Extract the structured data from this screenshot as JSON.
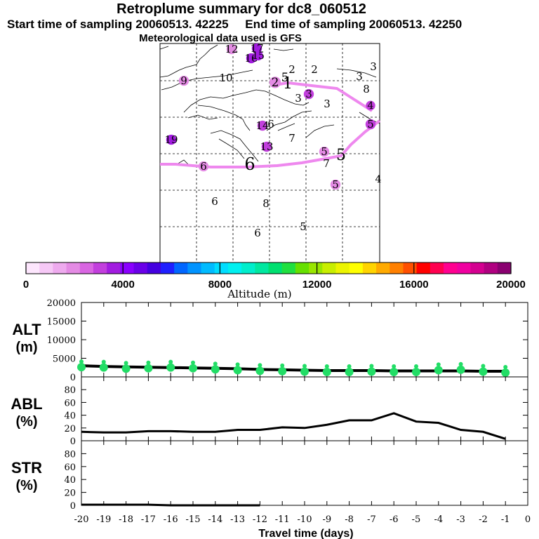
{
  "header": {
    "title": "Retroplume summary for dc8_060512",
    "start_label": "Start time of sampling 20060513. 42225",
    "end_label": "End time of sampling 20060513. 42250",
    "met_label": "Meteorological data used is GFS"
  },
  "colorbar": {
    "label": "Altitude  (m)",
    "ticks": [
      "0",
      "4000",
      "8000",
      "12000",
      "16000",
      "20000"
    ],
    "colors": [
      "#fde6fd",
      "#f6c8f6",
      "#eeaaee",
      "#e48be4",
      "#d966e2",
      "#c23fdd",
      "#a21ce0",
      "#8a00ff",
      "#6a00e8",
      "#4400e0",
      "#1f1fff",
      "#0066ff",
      "#0093ff",
      "#00bbff",
      "#00ddff",
      "#00f0f0",
      "#00eecc",
      "#00e8a0",
      "#00e070",
      "#20e040",
      "#66e000",
      "#99e600",
      "#c8ee00",
      "#ecf400",
      "#ffff00",
      "#ffd400",
      "#ffaa00",
      "#ff8000",
      "#ff5000",
      "#ff0000",
      "#ff0050",
      "#ff0090",
      "#f000a0",
      "#d40090",
      "#b00080",
      "#8a0070"
    ]
  },
  "map": {
    "labels": [
      {
        "t": "12",
        "c": "#e08be0"
      },
      {
        "t": "17",
        "c": "#a21ce0"
      },
      {
        "t": "16",
        "c": "#a21ce0"
      },
      {
        "t": "15",
        "c": "#a21ce0"
      },
      {
        "t": "9",
        "c": "#e48be4"
      },
      {
        "t": "10",
        "c": ""
      },
      {
        "t": "2",
        "c": ""
      },
      {
        "t": "2",
        "c": ""
      },
      {
        "t": "3",
        "c": ""
      },
      {
        "t": "3",
        "c": ""
      },
      {
        "t": "8",
        "c": ""
      },
      {
        "t": "5",
        "c": ""
      },
      {
        "t": "2",
        "c": "#e48be4"
      },
      {
        "t": "1",
        "c": ""
      },
      {
        "t": "3",
        "c": "#c23fdd"
      },
      {
        "t": "3",
        "c": ""
      },
      {
        "t": "4",
        "c": "#c23fdd"
      },
      {
        "t": "14",
        "c": "#c23fdd"
      },
      {
        "t": "6",
        "c": ""
      },
      {
        "t": "5",
        "c": "#c23fdd"
      },
      {
        "t": "19",
        "c": "#a21ce0"
      },
      {
        "t": "13",
        "c": "#c23fdd"
      },
      {
        "t": "7",
        "c": ""
      },
      {
        "t": "5",
        "c": "#e48be4"
      },
      {
        "t": "5",
        "c": ""
      },
      {
        "t": "7",
        "c": ""
      },
      {
        "t": "6",
        "c": "#e48be4"
      },
      {
        "t": "6",
        "c": ""
      },
      {
        "t": "5",
        "c": "#e48be4"
      },
      {
        "t": "4",
        "c": ""
      },
      {
        "t": "6",
        "c": ""
      },
      {
        "t": "8",
        "c": ""
      },
      {
        "t": "5",
        "c": ""
      },
      {
        "t": "6",
        "c": ""
      },
      {
        "t": "3",
        "c": ""
      }
    ]
  },
  "chart_data": [
    {
      "type": "scatter",
      "panel": "ALT",
      "ylabel": "ALT\n(m)",
      "ylabel_line1": "ALT",
      "ylabel_line2": "(m)",
      "ylim": [
        0,
        20000
      ],
      "yticks": [
        0,
        5000,
        10000,
        15000,
        20000
      ],
      "x": [
        -20,
        -19,
        -18,
        -17,
        -16,
        -15,
        -14,
        -13,
        -12,
        -11,
        -10,
        -9,
        -8,
        -7,
        -6,
        -5,
        -4,
        -3,
        -2,
        -1
      ],
      "mean_line": [
        3000,
        2800,
        2700,
        2600,
        2500,
        2400,
        2300,
        2200,
        2000,
        1900,
        1800,
        1700,
        1700,
        1700,
        1600,
        1600,
        1600,
        1600,
        1500,
        1500
      ],
      "points": [
        3000,
        2900,
        2600,
        2700,
        2900,
        2700,
        2400,
        2200,
        2000,
        1900,
        1800,
        1700,
        1700,
        1800,
        1700,
        1700,
        2200,
        2300,
        1800,
        1500
      ],
      "point_color": "#22dd66"
    },
    {
      "type": "line",
      "panel": "ABL",
      "ylabel_line1": "ABL",
      "ylabel_line2": "(%)",
      "ylim": [
        0,
        100
      ],
      "yticks": [
        0,
        20,
        40,
        60,
        80
      ],
      "x": [
        -20,
        -19,
        -18,
        -17,
        -16,
        -15,
        -14,
        -13,
        -12,
        -11,
        -10,
        -9,
        -8,
        -7,
        -6,
        -5,
        -4,
        -3,
        -2,
        -1
      ],
      "values": [
        14,
        13,
        13,
        15,
        15,
        14,
        14,
        17,
        17,
        21,
        20,
        25,
        32,
        32,
        43,
        30,
        28,
        17,
        14,
        3
      ]
    },
    {
      "type": "line",
      "panel": "STR",
      "ylabel_line1": "STR",
      "ylabel_line2": "(%)",
      "ylim": [
        0,
        100
      ],
      "yticks": [
        0,
        20,
        40,
        60,
        80
      ],
      "x": [
        -20,
        -19,
        -18,
        -17,
        -16,
        -15,
        -14,
        -13,
        -12
      ],
      "values": [
        1,
        1,
        1,
        1,
        0,
        0,
        0,
        0,
        0
      ],
      "xlabel": "Travel time (days)",
      "xticks": [
        -20,
        -19,
        -18,
        -17,
        -16,
        -15,
        -14,
        -13,
        -12,
        -11,
        -10,
        -9,
        -8,
        -7,
        -6,
        -5,
        -4,
        -3,
        -2,
        -1,
        0
      ]
    }
  ]
}
